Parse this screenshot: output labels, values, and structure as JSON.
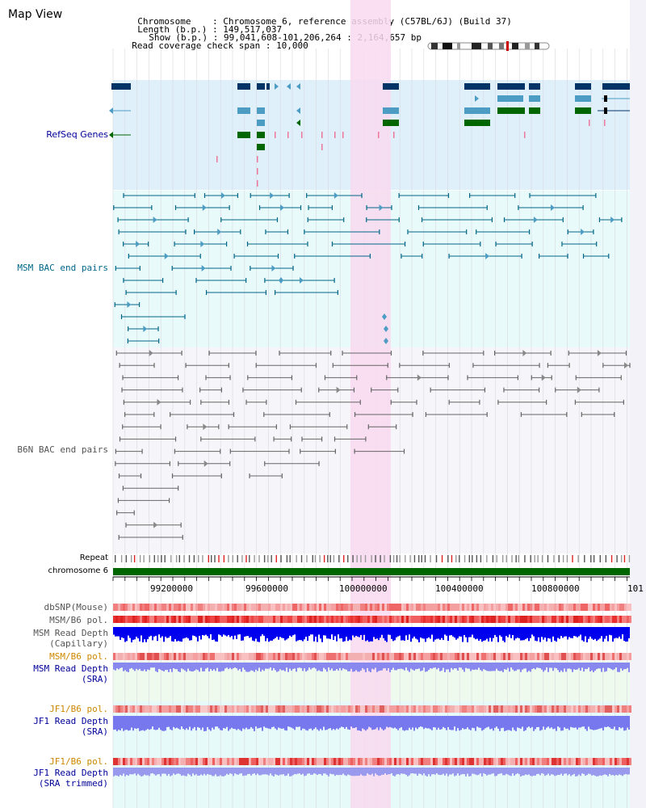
{
  "page": {
    "title": "Map View"
  },
  "header": {
    "chromosome_label": "Chromosome    : ",
    "chromosome_value": "Chromosome 6, reference assembly (C57BL/6J) (Build 37)",
    "length_label": "Length (b.p.) : ",
    "length_value": "149,517,037",
    "show_label": "Show (b.p.) : ",
    "show_value": "99,041,608-101,206,264 : 2,164,657 bp",
    "span_label": "Read coverage check span : ",
    "span_value": "10,000"
  },
  "tracks": {
    "refseq": "RefSeq Genes",
    "msm_bac": "MSM BAC end pairs",
    "b6n_bac": "B6N BAC end pairs",
    "repeat": "Repeat",
    "chromosome": "chromosome 6",
    "dbsnp": "dbSNP(Mouse)",
    "msm_b6_pol_1": "MSM/B6 pol.",
    "msm_depth_cap_1": "MSM Read Depth",
    "msm_depth_cap_2": "(Capillary)",
    "msm_b6_pol_2": "MSM/B6 pol.",
    "msm_depth_sra_1": "MSM Read Depth",
    "msm_depth_sra_2": "(SRA)",
    "jf1_b6_pol_1": "JF1/B6 pol.",
    "jf1_depth_sra_1": "JF1 Read Depth",
    "jf1_depth_sra_2": "(SRA)",
    "jf1_b6_pol_2": "JF1/B6 pol.",
    "jf1_depth_trim_1": "JF1 Read Depth",
    "jf1_depth_trim_2": "(SRA trimmed)"
  },
  "axis": {
    "ticks": [
      "99200000",
      "99600000",
      "100000000",
      "100400000",
      "100800000",
      "101"
    ]
  },
  "colors": {
    "refseq_bg": "#dff0fa",
    "msm_bac_bg": "#e8fafa",
    "b6n_bac_bg": "#f6f6fa",
    "highlight": "#f9d9f0",
    "refseq_dark": "#003366",
    "refseq_mid": "#4d9cc4",
    "refseq_green": "#006600",
    "msm_bac_line": "#006688",
    "b6n_bac_line": "#666666",
    "chrom_bar": "#006600",
    "label_refseq": "#000099",
    "label_msm": "#006688",
    "label_b6n": "#555555",
    "label_depth": "#000099",
    "label_pol": "#cc8800"
  }
}
